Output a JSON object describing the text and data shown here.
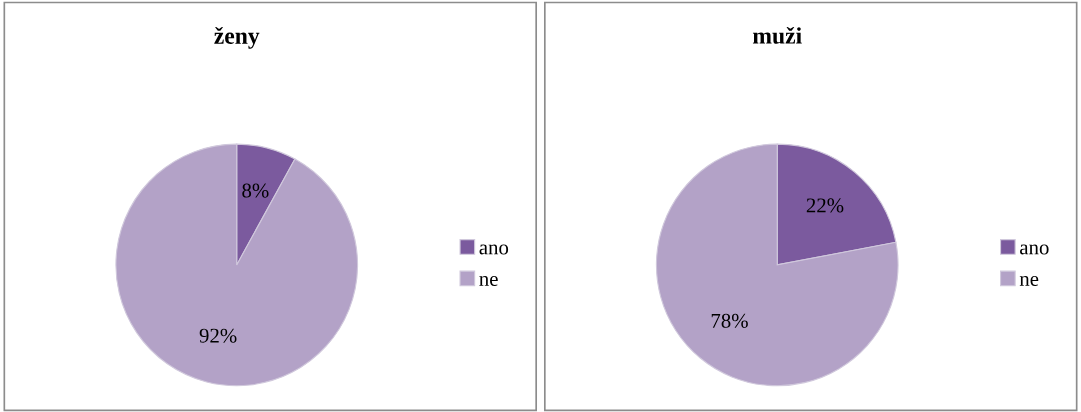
{
  "chart_data": [
    {
      "type": "pie",
      "title": "ženy",
      "categories": [
        "ano",
        "ne"
      ],
      "values": [
        8,
        92
      ],
      "colors": [
        "#7b5a9e",
        "#b3a2c7"
      ],
      "value_labels": [
        "8%",
        "92%"
      ],
      "legend": "right"
    },
    {
      "type": "pie",
      "title": "muži",
      "categories": [
        "ano",
        "ne"
      ],
      "values": [
        22,
        78
      ],
      "colors": [
        "#7b5a9e",
        "#b3a2c7"
      ],
      "value_labels": [
        "22%",
        "78%"
      ],
      "legend": "right"
    }
  ]
}
